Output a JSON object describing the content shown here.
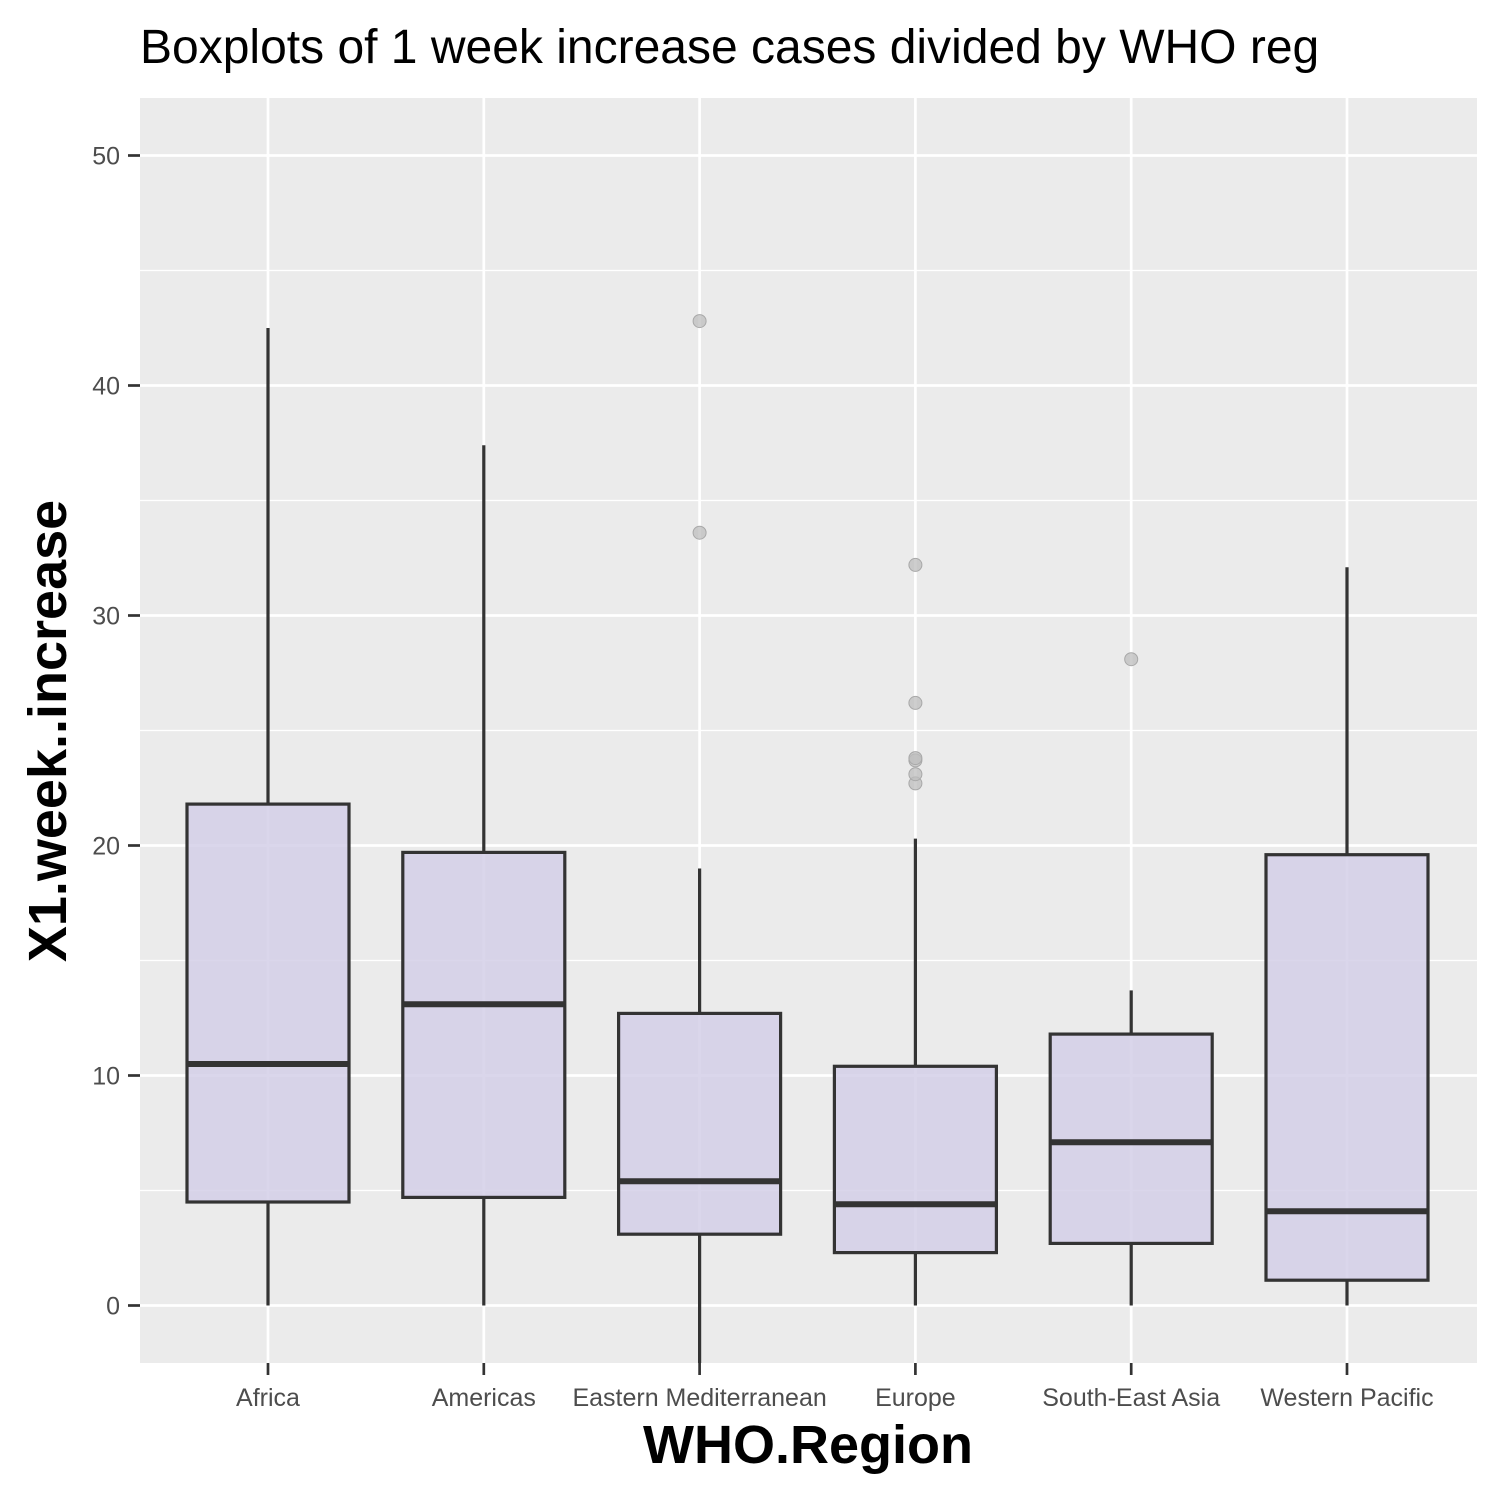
{
  "chart_data": {
    "type": "boxplot",
    "title": "Boxplots of 1 week increase cases divided by WHO reg",
    "xlabel": "WHO.Region",
    "ylabel": "X1.week..increase",
    "ylim": [
      -2.5,
      52.5
    ],
    "yticks": [
      0,
      10,
      20,
      30,
      40,
      50
    ],
    "grid": true,
    "legend": "none",
    "colors": {
      "panel": "#EBEBEB",
      "grid": "#FFFFFF",
      "box_fill": "#D3CFE7",
      "box_line": "#333333",
      "outlier": "#BDBDBD"
    },
    "categories": [
      "Africa",
      "Americas",
      "Eastern Mediterranean",
      "Europe",
      "South-East Asia",
      "Western Pacific"
    ],
    "boxes": [
      {
        "category": "Africa",
        "whisker_low": 0,
        "q1": 4.5,
        "median": 10.5,
        "q3": 21.8,
        "whisker_high": 42.5,
        "outliers": []
      },
      {
        "category": "Americas",
        "whisker_low": 0,
        "q1": 4.7,
        "median": 13.1,
        "q3": 19.7,
        "whisker_high": 37.4,
        "outliers": []
      },
      {
        "category": "Eastern Mediterranean",
        "whisker_low": -2.5,
        "q1": 3.1,
        "median": 5.4,
        "q3": 12.7,
        "whisker_high": 19.0,
        "outliers": [
          33.6,
          42.8
        ]
      },
      {
        "category": "Europe",
        "whisker_low": 0,
        "q1": 2.3,
        "median": 4.4,
        "q3": 10.4,
        "whisker_high": 20.3,
        "outliers": [
          22.7,
          23.1,
          23.7,
          23.8,
          26.2,
          32.2
        ]
      },
      {
        "category": "South-East Asia",
        "whisker_low": 0,
        "q1": 2.7,
        "median": 7.1,
        "q3": 11.8,
        "whisker_high": 13.7,
        "outliers": [
          28.1
        ]
      },
      {
        "category": "Western Pacific",
        "whisker_low": 0,
        "q1": 1.1,
        "median": 4.1,
        "q3": 19.6,
        "whisker_high": 32.1,
        "outliers": []
      }
    ]
  }
}
